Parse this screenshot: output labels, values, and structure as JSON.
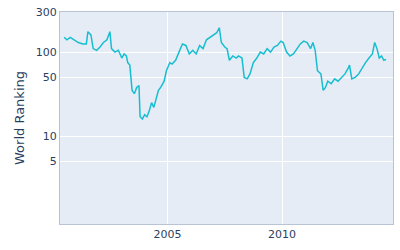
{
  "chart_data": {
    "type": "line",
    "y_label": "World Ranking",
    "color": "#17becf",
    "log": "y",
    "grid": true,
    "x": [
      2000.48,
      2000.6,
      2000.75,
      2000.9,
      2001.1,
      2001.3,
      2001.45,
      2001.52,
      2001.65,
      2001.75,
      2001.9,
      2002.05,
      2002.2,
      2002.35,
      2002.48,
      2002.55,
      2002.7,
      2002.85,
      2003.0,
      2003.1,
      2003.2,
      2003.26,
      2003.35,
      2003.45,
      2003.55,
      2003.65,
      2003.75,
      2003.8,
      2003.9,
      2004.0,
      2004.1,
      2004.2,
      2004.3,
      2004.4,
      2004.5,
      2004.6,
      2004.7,
      2004.85,
      2004.95,
      2005.1,
      2005.2,
      2005.35,
      2005.5,
      2005.65,
      2005.8,
      2005.95,
      2006.1,
      2006.25,
      2006.4,
      2006.55,
      2006.7,
      2006.85,
      2007.0,
      2007.15,
      2007.26,
      2007.35,
      2007.5,
      2007.6,
      2007.7,
      2007.85,
      2008.0,
      2008.1,
      2008.25,
      2008.35,
      2008.48,
      2008.6,
      2008.75,
      2008.9,
      2009.05,
      2009.2,
      2009.35,
      2009.5,
      2009.65,
      2009.8,
      2009.95,
      2010.05,
      2010.2,
      2010.35,
      2010.5,
      2010.65,
      2010.8,
      2010.95,
      2011.1,
      2011.25,
      2011.35,
      2011.45,
      2011.55,
      2011.7,
      2011.8,
      2011.9,
      2012.0,
      2012.15,
      2012.3,
      2012.45,
      2012.6,
      2012.75,
      2012.9,
      2012.95,
      2013.05,
      2013.2,
      2013.35,
      2013.5,
      2013.65,
      2013.8,
      2013.95,
      2014.05,
      2014.15,
      2014.25,
      2014.35,
      2014.45,
      2014.55
    ],
    "values": [
      150,
      140,
      150,
      140,
      130,
      125,
      125,
      175,
      160,
      110,
      105,
      115,
      130,
      140,
      175,
      110,
      100,
      105,
      85,
      95,
      90,
      75,
      70,
      35,
      32,
      38,
      40,
      17,
      16,
      18,
      17,
      20,
      25,
      22,
      28,
      35,
      38,
      45,
      60,
      75,
      72,
      80,
      100,
      125,
      120,
      95,
      105,
      95,
      120,
      110,
      140,
      150,
      160,
      170,
      195,
      130,
      115,
      110,
      80,
      90,
      85,
      90,
      85,
      50,
      48,
      55,
      75,
      85,
      100,
      95,
      110,
      100,
      115,
      120,
      135,
      130,
      100,
      90,
      95,
      110,
      125,
      135,
      130,
      110,
      130,
      105,
      60,
      55,
      35,
      38,
      45,
      42,
      48,
      45,
      50,
      55,
      65,
      70,
      48,
      50,
      55,
      65,
      75,
      85,
      95,
      130,
      110,
      85,
      90,
      80,
      82
    ],
    "xlim": [
      2000.3,
      2014.85
    ],
    "xticks": [
      2005,
      2010
    ],
    "ylim": [
      0.9,
      300
    ],
    "yticks": [
      5,
      10,
      50,
      100,
      300
    ]
  }
}
